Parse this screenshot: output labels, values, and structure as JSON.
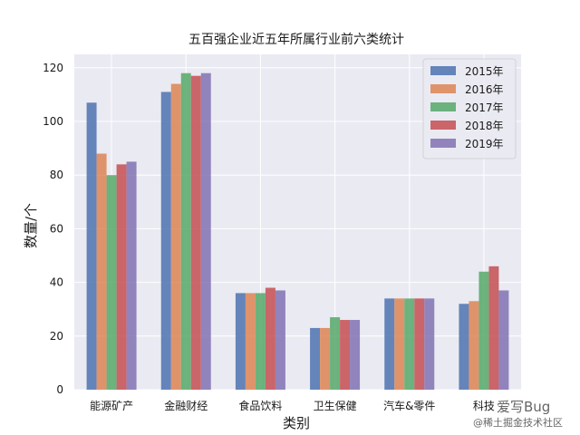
{
  "chart_data": {
    "type": "bar",
    "title": "五百强企业近五年所属行业前六类统计",
    "xlabel": "类别",
    "ylabel": "数量/个",
    "categories": [
      "能源矿产",
      "金融财经",
      "食品饮料",
      "卫生保健",
      "汽车&零件",
      "科技"
    ],
    "series": [
      {
        "name": "2015年",
        "color": "#4c72b0",
        "values": [
          107,
          111,
          36,
          23,
          34,
          32
        ]
      },
      {
        "name": "2016年",
        "color": "#dd8452",
        "values": [
          88,
          114,
          36,
          23,
          34,
          33
        ]
      },
      {
        "name": "2017年",
        "color": "#55a868",
        "values": [
          80,
          118,
          36,
          27,
          34,
          44
        ]
      },
      {
        "name": "2018年",
        "color": "#c44e52",
        "values": [
          84,
          117,
          38,
          26,
          34,
          46
        ]
      },
      {
        "name": "2019年",
        "color": "#8172b3",
        "values": [
          85,
          118,
          37,
          26,
          34,
          37
        ]
      }
    ],
    "ylim": [
      0,
      125
    ],
    "yticks": [
      0,
      20,
      40,
      60,
      80,
      100,
      120
    ],
    "grid": true,
    "legend_position": "top-right",
    "background": "#eaeaf2"
  },
  "watermark": {
    "line1": "爱写Bug",
    "line2": "@稀土掘金技术社区"
  }
}
